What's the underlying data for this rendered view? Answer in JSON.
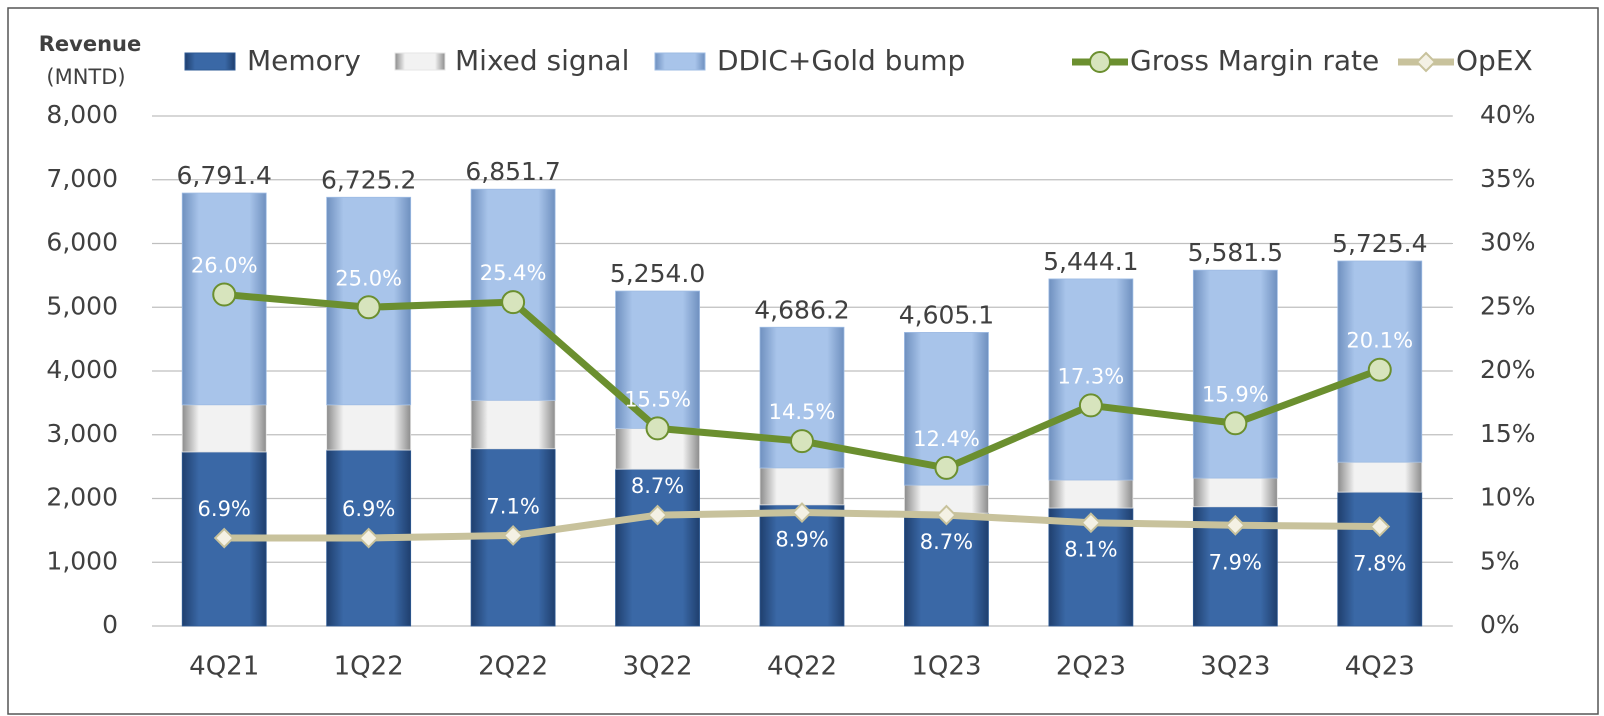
{
  "chart_data": {
    "type": "stacked_bar_line",
    "ylabel": [
      "Revenue",
      "(MNTD)"
    ],
    "categories": [
      "4Q21",
      "1Q22",
      "2Q22",
      "3Q22",
      "4Q22",
      "1Q23",
      "2Q23",
      "3Q23",
      "4Q23"
    ],
    "series": [
      {
        "name": "Memory",
        "type": "bar",
        "color": "#2f5b95",
        "values": [
          2730,
          2760,
          2780,
          2460,
          1900,
          1770,
          1850,
          1870,
          2100
        ]
      },
      {
        "name": "Mixed signal",
        "type": "bar",
        "color": "#e6e6e6",
        "values": [
          740,
          710,
          760,
          640,
          580,
          440,
          440,
          450,
          470
        ]
      },
      {
        "name": "DDIC+Gold bump",
        "type": "bar",
        "color": "#9dbbe3",
        "values": [
          3321.4,
          3255.2,
          3311.7,
          2154.0,
          2206.2,
          2395.1,
          3154.1,
          3261.5,
          3155.4
        ]
      },
      {
        "name": "Gross Margin rate",
        "type": "line",
        "axis": "y2",
        "color": "#6b8f2f",
        "marker_fill": "#d7e4bd",
        "values": [
          26.0,
          25.0,
          25.4,
          15.5,
          14.5,
          12.4,
          17.3,
          15.9,
          20.1
        ],
        "value_labels": [
          "26.0%",
          "25.0%",
          "25.4%",
          "15.5%",
          "14.5%",
          "12.4%",
          "17.3%",
          "15.9%",
          "20.1%"
        ]
      },
      {
        "name": "OpEX",
        "type": "line",
        "axis": "y2",
        "color": "#c8c29c",
        "marker_fill": "#f4f1e4",
        "values": [
          6.9,
          6.9,
          7.1,
          8.7,
          8.9,
          8.7,
          8.1,
          7.9,
          7.8
        ],
        "value_labels": [
          "6.9%",
          "6.9%",
          "7.1%",
          "8.7%",
          "8.9%",
          "8.7%",
          "8.1%",
          "7.9%",
          "7.8%"
        ]
      }
    ],
    "totals": [
      6791.4,
      6725.2,
      6851.7,
      5254.0,
      4686.2,
      4605.1,
      5444.1,
      5581.5,
      5725.4
    ],
    "total_labels": [
      "6,791.4",
      "6,725.2",
      "6,851.7",
      "5,254.0",
      "4,686.2",
      "4,605.1",
      "5,444.1",
      "5,581.5",
      "5,725.4"
    ],
    "ylim": [
      0,
      8000
    ],
    "yticks": [
      0,
      {
        "value": 1000,
        "label": "1,000"
      },
      {
        "value": 2000,
        "label": "2,000"
      },
      {
        "value": 3000,
        "label": "3,000"
      },
      {
        "value": 4000,
        "label": "4,000"
      },
      {
        "value": 5000,
        "label": "5,000"
      },
      {
        "value": 6000,
        "label": "6,000"
      },
      {
        "value": 7000,
        "label": "7,000"
      },
      {
        "value": 8000,
        "label": "8,000"
      }
    ],
    "y2lim": [
      0,
      40
    ],
    "y2ticks": [
      {
        "value": 0,
        "label": "0%"
      },
      {
        "value": 5,
        "label": "5%"
      },
      {
        "value": 10,
        "label": "10%"
      },
      {
        "value": 15,
        "label": "15%"
      },
      {
        "value": 20,
        "label": "20%"
      },
      {
        "value": 25,
        "label": "25%"
      },
      {
        "value": 30,
        "label": "30%"
      },
      {
        "value": 35,
        "label": "35%"
      },
      {
        "value": 40,
        "label": "40%"
      }
    ],
    "grid": true,
    "legend": "top"
  }
}
